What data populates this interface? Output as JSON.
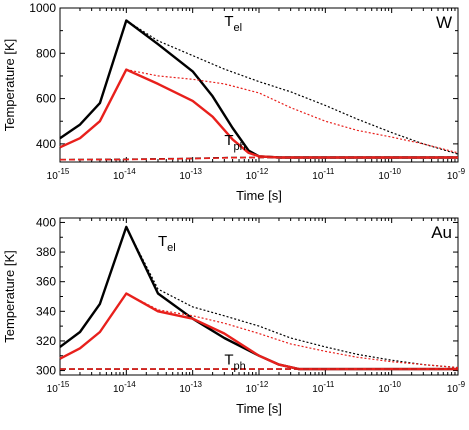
{
  "chart_data": [
    {
      "type": "line",
      "panel_label": "W",
      "xlabel": "Time [s]",
      "ylabel": "Temperature [K]",
      "xscale": "log",
      "xlim": [
        1e-15,
        1e-09
      ],
      "ylim": [
        320,
        1000
      ],
      "x_ticks": [
        1e-15,
        1e-14,
        1e-13,
        1e-12,
        1e-11,
        1e-10,
        1e-09
      ],
      "x_tick_labels": [
        {
          "base": "10",
          "exp": "-15"
        },
        {
          "base": "10",
          "exp": "-14"
        },
        {
          "base": "10",
          "exp": "-13"
        },
        {
          "base": "10",
          "exp": "-12"
        },
        {
          "base": "10",
          "exp": "-11"
        },
        {
          "base": "10",
          "exp": "-10"
        },
        {
          "base": "10",
          "exp": "-9"
        }
      ],
      "y_ticks": [
        400,
        600,
        800,
        1000
      ],
      "y_tick_labels": [
        "400",
        "600",
        "800",
        "1000"
      ],
      "annotations": [
        {
          "base": "T",
          "sub": "el",
          "x": 3e-13,
          "y": 920
        },
        {
          "base": "T",
          "sub": "ph",
          "x": 3e-13,
          "y": 395
        }
      ],
      "series": [
        {
          "color": "#000000",
          "dash": "solid",
          "width": 2.4,
          "x": [
            1e-15,
            2e-15,
            4e-15,
            1e-14,
            3e-14,
            1e-13,
            2e-13,
            4e-13,
            7e-13,
            1e-12,
            2e-12,
            1e-11,
            1e-10,
            1e-09
          ],
          "y": [
            425,
            485,
            580,
            945,
            840,
            720,
            610,
            470,
            370,
            345,
            340,
            340,
            340,
            340
          ]
        },
        {
          "color": "#000000",
          "dash": "dotted",
          "width": 1.2,
          "x": [
            1e-14,
            3e-14,
            1e-13,
            3e-13,
            1e-12,
            3e-12,
            1e-11,
            3e-11,
            1e-10,
            3e-10,
            1e-09
          ],
          "y": [
            945,
            855,
            790,
            730,
            675,
            630,
            570,
            510,
            450,
            400,
            355
          ]
        },
        {
          "color": "#e8201c",
          "dash": "solid",
          "width": 2.4,
          "x": [
            1e-15,
            2e-15,
            4e-15,
            1e-14,
            3e-14,
            1e-13,
            2e-13,
            4e-13,
            7e-13,
            1e-12,
            2e-12,
            1e-11,
            1e-10,
            1e-09
          ],
          "y": [
            385,
            425,
            500,
            728,
            665,
            590,
            520,
            420,
            360,
            345,
            340,
            340,
            340,
            340
          ]
        },
        {
          "color": "#e8201c",
          "dash": "dotted",
          "width": 1.2,
          "x": [
            1e-14,
            3e-14,
            1e-13,
            3e-13,
            1e-12,
            3e-12,
            1e-11,
            3e-11,
            1e-10,
            3e-10,
            1e-09
          ],
          "y": [
            728,
            700,
            685,
            665,
            625,
            560,
            500,
            460,
            430,
            400,
            360
          ]
        },
        {
          "color": "#000000",
          "dash": "dashed",
          "width": 1.6,
          "x": [
            1e-15,
            1e-14,
            1e-13,
            4e-13,
            1e-12,
            1e-11,
            1e-10,
            1e-09
          ],
          "y": [
            330,
            332,
            336,
            340,
            340,
            340,
            340,
            340
          ]
        },
        {
          "color": "#e8201c",
          "dash": "dashed",
          "width": 1.6,
          "x": [
            1e-15,
            1e-14,
            1e-13,
            4e-13,
            1e-12,
            1e-11,
            1e-10,
            1e-09
          ],
          "y": [
            330,
            331,
            335,
            339,
            340,
            340,
            340,
            340
          ]
        }
      ]
    },
    {
      "type": "line",
      "panel_label": "Au",
      "xlabel": "Time [s]",
      "ylabel": "Temperature [K]",
      "xscale": "log",
      "xlim": [
        1e-15,
        1e-09
      ],
      "ylim": [
        297,
        403
      ],
      "x_ticks": [
        1e-15,
        1e-14,
        1e-13,
        1e-12,
        1e-11,
        1e-10,
        1e-09
      ],
      "x_tick_labels": [
        {
          "base": "10",
          "exp": "-15"
        },
        {
          "base": "10",
          "exp": "-14"
        },
        {
          "base": "10",
          "exp": "-13"
        },
        {
          "base": "10",
          "exp": "-12"
        },
        {
          "base": "10",
          "exp": "-11"
        },
        {
          "base": "10",
          "exp": "-10"
        },
        {
          "base": "10",
          "exp": "-9"
        }
      ],
      "y_ticks": [
        300,
        320,
        340,
        360,
        380,
        400
      ],
      "y_tick_labels": [
        "300",
        "320",
        "340",
        "360",
        "380",
        "400"
      ],
      "annotations": [
        {
          "base": "T",
          "sub": "el",
          "x": 3e-14,
          "y": 384
        },
        {
          "base": "T",
          "sub": "ph",
          "x": 3e-13,
          "y": 304
        }
      ],
      "series": [
        {
          "color": "#000000",
          "dash": "solid",
          "width": 2.4,
          "x": [
            1e-15,
            2e-15,
            4e-15,
            1e-14,
            3e-14,
            1e-13,
            3e-13,
            1e-12,
            2e-12,
            4e-12,
            1e-11,
            1e-10,
            1e-09
          ],
          "y": [
            316,
            326,
            345,
            397,
            352,
            335,
            322,
            310,
            304,
            301,
            301,
            301,
            301
          ]
        },
        {
          "color": "#000000",
          "dash": "dotted",
          "width": 1.2,
          "x": [
            1e-14,
            3e-14,
            1e-13,
            3e-13,
            1e-12,
            3e-12,
            1e-11,
            3e-11,
            1e-10,
            3e-10,
            1e-09
          ],
          "y": [
            397,
            355,
            343,
            337,
            330,
            322,
            316,
            311,
            307,
            304,
            302
          ]
        },
        {
          "color": "#e8201c",
          "dash": "solid",
          "width": 2.4,
          "x": [
            1e-15,
            2e-15,
            4e-15,
            1e-14,
            3e-14,
            1e-13,
            3e-13,
            1e-12,
            2e-12,
            4e-12,
            1e-11,
            1e-10,
            1e-09
          ],
          "y": [
            308,
            315,
            326,
            352,
            340,
            335,
            325,
            310,
            304,
            301,
            301,
            301,
            301
          ]
        },
        {
          "color": "#e8201c",
          "dash": "dotted",
          "width": 1.2,
          "x": [
            1e-14,
            3e-14,
            1e-13,
            3e-13,
            1e-12,
            3e-12,
            1e-11,
            3e-11,
            1e-10,
            3e-10,
            1e-09
          ],
          "y": [
            352,
            341,
            337,
            332,
            325,
            318,
            313,
            309,
            306,
            304,
            302
          ]
        },
        {
          "color": "#000000",
          "dash": "dashed",
          "width": 1.6,
          "x": [
            1e-15,
            1e-13,
            1e-12,
            1e-11,
            1e-10,
            1e-09
          ],
          "y": [
            301,
            301,
            301,
            301,
            301,
            301
          ]
        },
        {
          "color": "#e8201c",
          "dash": "dashed",
          "width": 1.6,
          "x": [
            1e-15,
            1e-13,
            1e-12,
            1e-11,
            1e-10,
            1e-09
          ],
          "y": [
            301,
            301,
            301,
            301,
            301,
            301
          ]
        }
      ]
    }
  ]
}
